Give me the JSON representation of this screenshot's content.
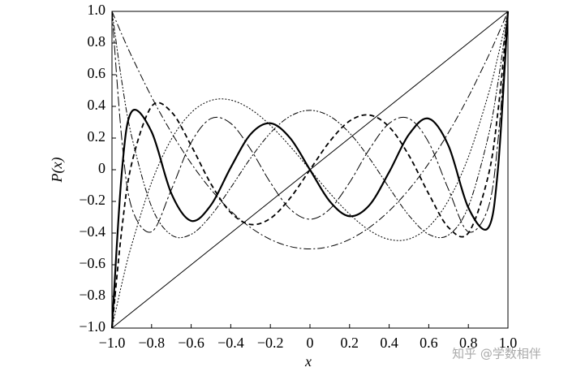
{
  "chart_data": {
    "type": "line",
    "xlabel": "x",
    "ylabel": "P(x)",
    "watermark": "知乎 @学数相伴",
    "xlim": [
      -1,
      1
    ],
    "ylim": [
      -1,
      1
    ],
    "xticks": [
      {
        "value": -1,
        "label": "−1.0"
      },
      {
        "value": -0.8,
        "label": "−0.8"
      },
      {
        "value": -0.6,
        "label": "−0.6"
      },
      {
        "value": -0.4,
        "label": "−0.4"
      },
      {
        "value": -0.2,
        "label": "−0.2"
      },
      0,
      0.2,
      0.4,
      0.6,
      0.8,
      {
        "value": 1,
        "label": "1.0"
      }
    ],
    "yticks": [
      {
        "value": -1,
        "label": "−1.0"
      },
      {
        "value": -0.8,
        "label": "−0.8"
      },
      {
        "value": -0.6,
        "label": "−0.6"
      },
      {
        "value": -0.4,
        "label": "−0.4"
      },
      {
        "value": -0.2,
        "label": "−0.2"
      },
      0,
      0.2,
      0.4,
      0.6,
      0.8,
      {
        "value": 1,
        "label": "1.0"
      }
    ],
    "x": [
      -1,
      -0.95,
      -0.9,
      -0.8,
      -0.7,
      -0.6,
      -0.5,
      -0.4,
      -0.3,
      -0.2,
      -0.1,
      0,
      0.1,
      0.2,
      0.3,
      0.4,
      0.5,
      0.6,
      0.7,
      0.8,
      0.9,
      0.95,
      1
    ],
    "series": [
      {
        "color": "#000000",
        "width": 1,
        "dash": "none",
        "values": [
          -1,
          -0.95,
          -0.9,
          -0.8,
          -0.7,
          -0.6,
          -0.5,
          -0.4,
          -0.3,
          -0.2,
          -0.1,
          0,
          0.1,
          0.2,
          0.3,
          0.4,
          0.5,
          0.6,
          0.7,
          0.8,
          0.9,
          0.95,
          1
        ]
      },
      {
        "color": "#000000",
        "width": 1,
        "dash": "9 3 2 3",
        "values": [
          1,
          0.8538,
          0.715,
          0.46,
          0.235,
          0.04,
          -0.125,
          -0.26,
          -0.365,
          -0.44,
          -0.485,
          -0.5,
          -0.485,
          -0.44,
          -0.365,
          -0.26,
          -0.125,
          0.04,
          0.235,
          0.46,
          0.715,
          0.8538,
          1
        ]
      },
      {
        "color": "#000000",
        "width": 1,
        "dash": "2 2",
        "values": [
          -1,
          -0.7184,
          -0.4725,
          -0.08,
          0.1925,
          0.36,
          0.4375,
          0.44,
          0.3825,
          0.28,
          0.1475,
          0,
          -0.1475,
          -0.28,
          -0.3825,
          -0.44,
          -0.4375,
          -0.36,
          -0.1925,
          0.08,
          0.4725,
          0.7184,
          1
        ]
      },
      {
        "color": "#000000",
        "width": 1,
        "dash": "7 2 2 2 2 2",
        "values": [
          1,
          0.5541,
          0.2079,
          -0.233,
          -0.4121,
          -0.408,
          -0.2891,
          -0.113,
          0.0729,
          0.232,
          0.3379,
          0.375,
          0.3379,
          0.232,
          0.0729,
          -0.113,
          -0.2891,
          -0.408,
          -0.4121,
          -0.233,
          0.2079,
          0.5541,
          1
        ]
      },
      {
        "color": "#000000",
        "width": 1.8,
        "dash": "6 4",
        "values": [
          -1,
          -0.3728,
          0.0411,
          0.3995,
          0.3652,
          0.1526,
          -0.0898,
          -0.2706,
          -0.3454,
          -0.3075,
          -0.1788,
          0,
          0.1788,
          0.3075,
          0.3454,
          0.2706,
          0.0898,
          -0.1526,
          -0.3652,
          -0.3995,
          -0.0411,
          0.3728,
          1
        ]
      },
      {
        "color": "#000000",
        "width": 1,
        "dash": "12 3 3 3",
        "values": [
          1,
          0.1875,
          -0.2412,
          -0.3918,
          -0.1253,
          0.1721,
          0.3232,
          0.2926,
          0.1292,
          -0.0806,
          -0.2488,
          -0.3125,
          -0.2488,
          -0.0806,
          0.1292,
          0.2926,
          0.3232,
          0.1721,
          -0.1253,
          -0.3918,
          -0.2412,
          0.1875,
          1
        ]
      },
      {
        "color": "#000000",
        "width": 2.2,
        "dash": "none",
        "values": [
          -1,
          -0.0112,
          0.3678,
          0.2397,
          -0.1502,
          -0.3226,
          -0.2231,
          0.0146,
          0.2241,
          0.2935,
          0.1995,
          0,
          -0.1995,
          -0.2935,
          -0.2241,
          -0.0146,
          0.2231,
          0.3226,
          0.1502,
          -0.2397,
          -0.3678,
          0.0112,
          1
        ]
      }
    ]
  }
}
